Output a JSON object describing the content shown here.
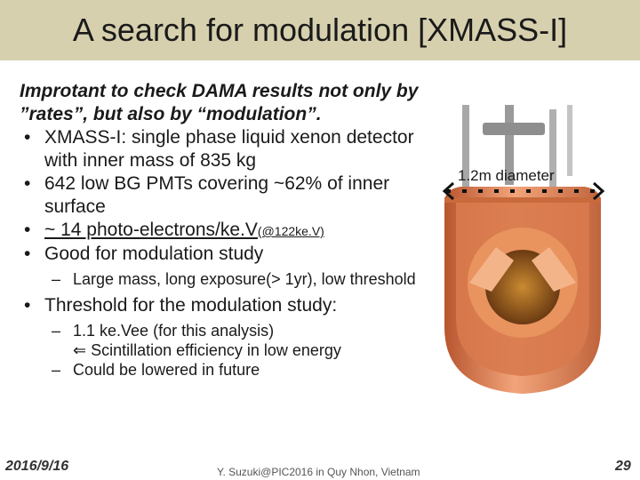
{
  "slide": {
    "title": "A search for modulation [XMASS-I]",
    "intro": "Improtant to check DAMA results not only by ”rates”, but also by “modulation”.",
    "bullets": [
      "XMASS-I: single phase liquid xenon detector with inner mass of 835 kg",
      "642 low BG PMTs covering ~62% of inner surface",
      "~ 14 photo-electrons/ke.V",
      "Good for modulation study"
    ],
    "bullet3_small": "(@122ke.V)",
    "sub_a": "Large mass, long exposure(> 1yr), low threshold",
    "bullet5": "Threshold for the modulation study:",
    "sub_b1": "1.1 ke.Vee (for this analysis)",
    "sub_b1_cont": "Scintillation efficiency in low energy",
    "sub_b2": "Could be lowered in future",
    "figure_label": "1.2m diameter"
  },
  "footer": {
    "date": "2016/9/16",
    "center": "Y. Suzuki@PIC2016 in Quy Nhon, Vietnam",
    "page": "29"
  },
  "colors": {
    "title_band": "#d6d0ae",
    "detector_copper": "#e8895a",
    "detector_dark": "#b8552f"
  }
}
